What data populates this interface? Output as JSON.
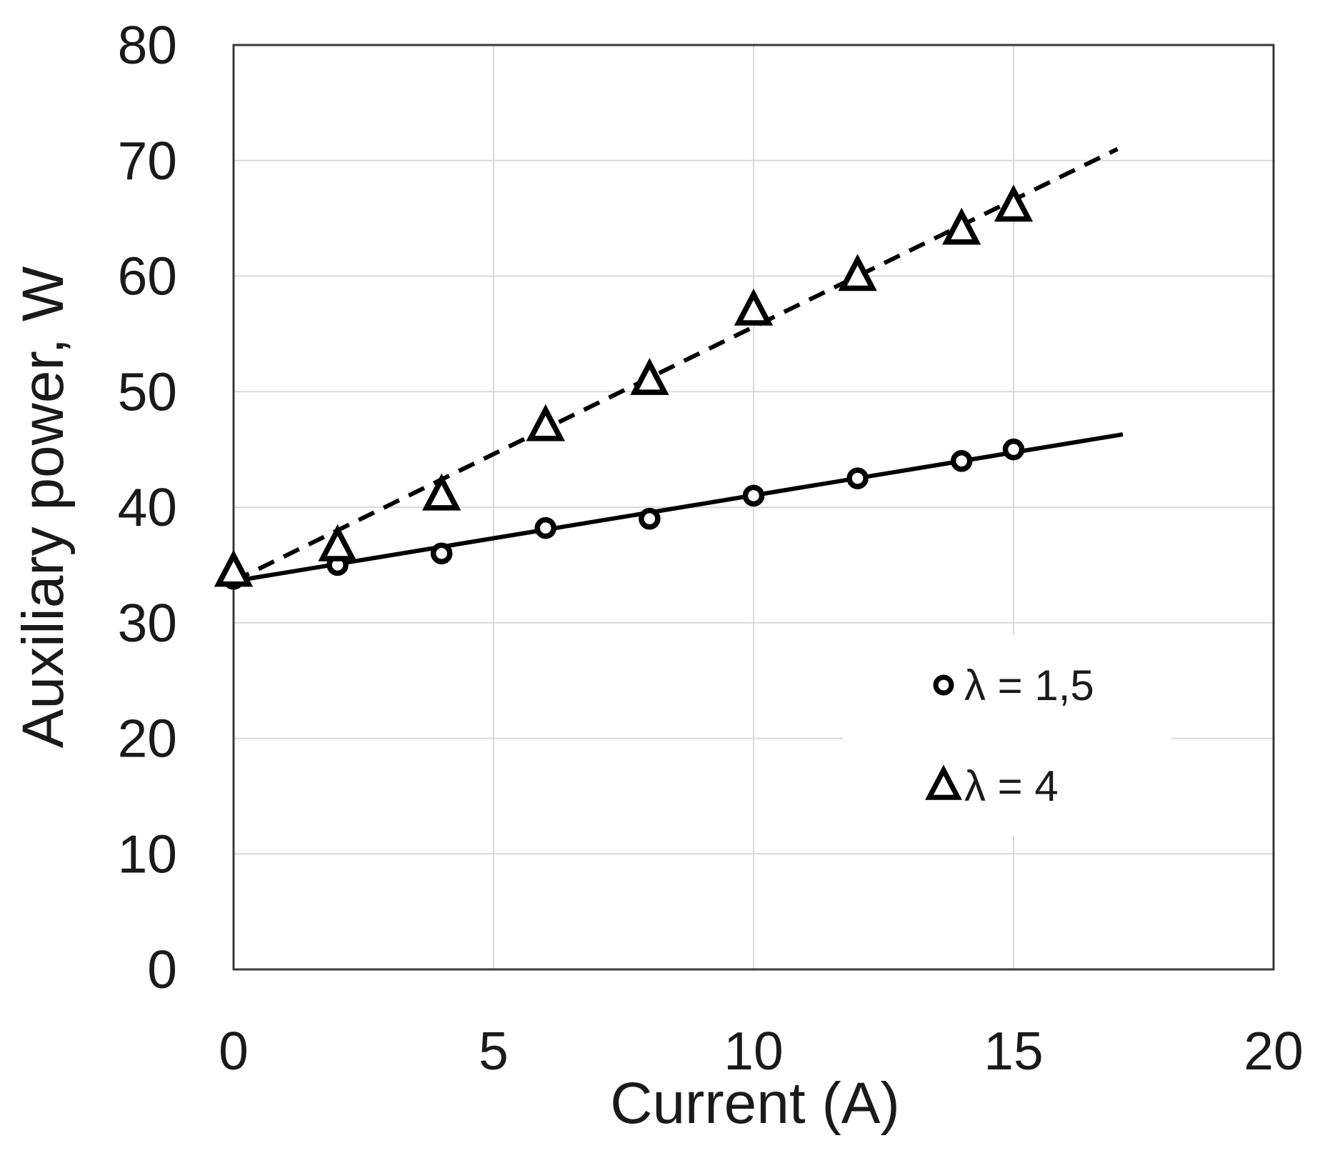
{
  "chart_data": {
    "type": "scatter",
    "title": "",
    "xlabel": "Current (A)",
    "ylabel": "Auxiliary power, W",
    "xlim": [
      0,
      20
    ],
    "ylim": [
      0,
      80
    ],
    "x_ticks": [
      0,
      5,
      10,
      15,
      20
    ],
    "y_ticks": [
      0,
      10,
      20,
      30,
      40,
      50,
      60,
      70,
      80
    ],
    "grid": true,
    "legend_position": "inside-lower-right",
    "series": [
      {
        "name": "λ = 1,5",
        "marker": "circle",
        "line": "solid",
        "x": [
          0,
          2,
          4,
          6,
          8,
          10,
          12,
          14,
          15
        ],
        "y": [
          33.8,
          35,
          36,
          38.2,
          39,
          41,
          42.5,
          44,
          45
        ],
        "trendline": {
          "x": [
            0,
            17.1
          ],
          "y": [
            33.6,
            46.3
          ]
        }
      },
      {
        "name": "λ = 4",
        "marker": "triangle",
        "line": "dashed",
        "x": [
          0,
          2,
          4,
          6,
          8,
          10,
          12,
          14,
          15
        ],
        "y": [
          34.4,
          36.6,
          41,
          47,
          51,
          57,
          60,
          64,
          66
        ],
        "trendline": {
          "x": [
            0,
            17
          ],
          "y": [
            33.6,
            71
          ]
        }
      }
    ],
    "colors": {
      "data_ink": "#000000",
      "grid": "#d9d9d9",
      "border": "#3a3a3a",
      "text": "#1a1a1a",
      "background": "#ffffff",
      "legend_background": "#ffffff"
    }
  }
}
